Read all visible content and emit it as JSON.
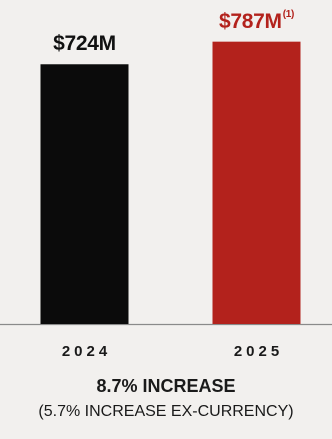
{
  "chart_data": {
    "type": "bar",
    "categories": [
      "2024",
      "2025"
    ],
    "values": [
      724,
      787
    ],
    "value_labels": [
      "$724M",
      "$787M"
    ],
    "footnote_markers": [
      "",
      "(1)"
    ],
    "colors": [
      "#0b0b0b",
      "#b3221c"
    ],
    "label_colors": [
      "#111111",
      "#b3221c"
    ],
    "ylim": [
      0,
      800
    ],
    "grid": false,
    "headline": "8.7% INCREASE",
    "subline": "(5.7% INCREASE EX-CURRENCY)"
  }
}
